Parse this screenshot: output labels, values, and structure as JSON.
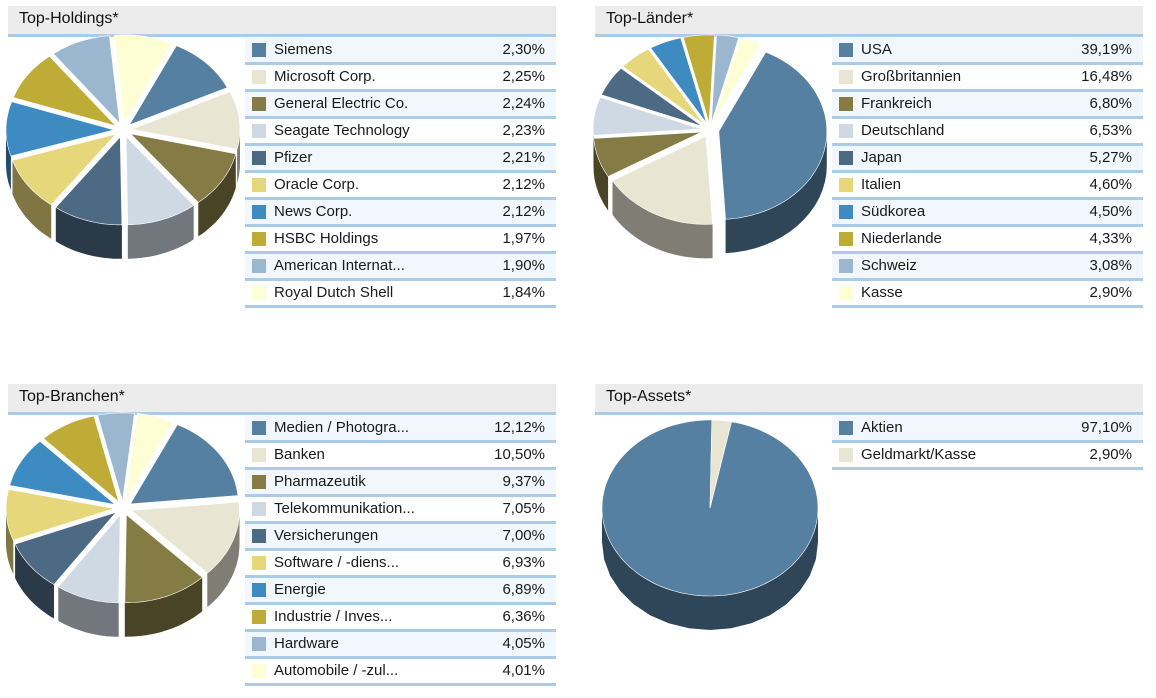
{
  "colors": [
    "#5580a2",
    "#e8e5d3",
    "#857b45",
    "#cfd9e4",
    "#4d6a85",
    "#e6d77a",
    "#3e8bc1",
    "#bfac37",
    "#9bb6cf",
    "#fefed5"
  ],
  "chart_data": [
    {
      "type": "pie",
      "title": "Top-Holdings*",
      "categories": [
        "Siemens",
        "Microsoft Corp.",
        "General Electric Co.",
        "Seagate Technology",
        "Pfizer",
        "Oracle Corp.",
        "News Corp.",
        "HSBC Holdings",
        "American Internat...",
        "Royal Dutch Shell"
      ],
      "labels": [
        "2,30%",
        "2,25%",
        "2,24%",
        "2,23%",
        "2,21%",
        "2,12%",
        "2,12%",
        "1,97%",
        "1,90%",
        "1,84%"
      ],
      "values": [
        2.3,
        2.25,
        2.24,
        2.23,
        2.21,
        2.12,
        2.12,
        1.97,
        1.9,
        1.84
      ]
    },
    {
      "type": "pie",
      "title": "Top-Länder*",
      "categories": [
        "USA",
        "Großbritannien",
        "Frankreich",
        "Deutschland",
        "Japan",
        "Italien",
        "Südkorea",
        "Niederlande",
        "Schweiz",
        "Kasse"
      ],
      "labels": [
        "39,19%",
        "16,48%",
        "6,80%",
        "6,53%",
        "5,27%",
        "4,60%",
        "4,50%",
        "4,33%",
        "3,08%",
        "2,90%"
      ],
      "values": [
        39.19,
        16.48,
        6.8,
        6.53,
        5.27,
        4.6,
        4.5,
        4.33,
        3.08,
        2.9
      ]
    },
    {
      "type": "pie",
      "title": "Top-Branchen*",
      "categories": [
        "Medien / Photogra...",
        "Banken",
        "Pharmazeutik",
        "Telekommunikation...",
        "Versicherungen",
        "Software / -diens...",
        "Energie",
        "Industrie / Inves...",
        "Hardware",
        "Automobile / -zul..."
      ],
      "labels": [
        "12,12%",
        "10,50%",
        "9,37%",
        "7,05%",
        "7,00%",
        "6,93%",
        "6,89%",
        "6,36%",
        "4,05%",
        "4,01%"
      ],
      "values": [
        12.12,
        10.5,
        9.37,
        7.05,
        7.0,
        6.93,
        6.89,
        6.36,
        4.05,
        4.01
      ]
    },
    {
      "type": "pie",
      "title": "Top-Assets*",
      "categories": [
        "Aktien",
        "Geldmarkt/Kasse"
      ],
      "labels": [
        "97,10%",
        "2,90%"
      ],
      "values": [
        97.1,
        2.9
      ]
    }
  ]
}
